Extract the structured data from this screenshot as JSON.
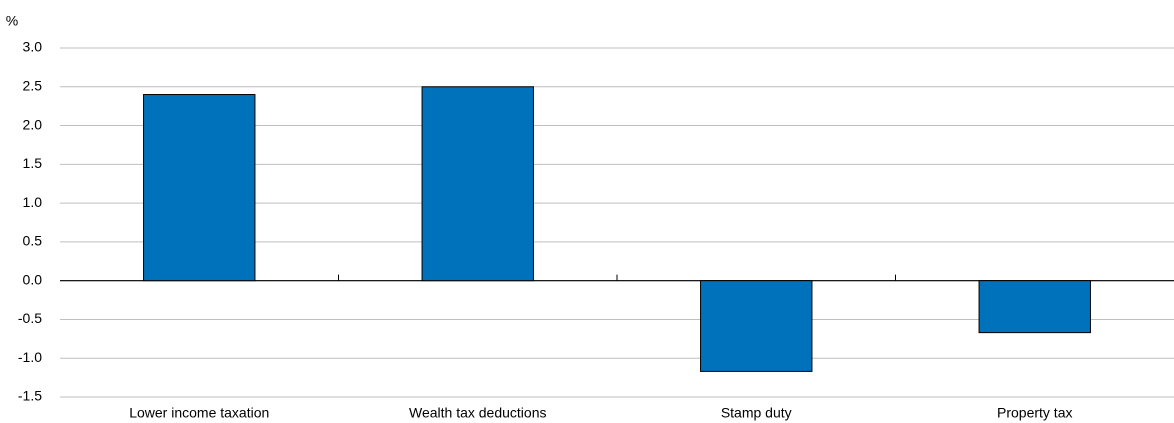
{
  "chart_data": {
    "type": "bar",
    "y_unit": "%",
    "categories": [
      "Lower income taxation",
      "Wealth tax deductions",
      "Stamp duty",
      "Property tax"
    ],
    "values": [
      2.4,
      2.5,
      -1.17,
      -0.67
    ],
    "color": "#0072bc",
    "ylim": [
      -1.5,
      3.0
    ],
    "yticks": [
      {
        "value": -1.5,
        "label": "-1.5"
      },
      {
        "value": -1,
        "label": "-1.0"
      },
      -0.5,
      {
        "value": 0,
        "label": "0.0"
      },
      0.5,
      {
        "value": 1,
        "label": "1.0"
      },
      1.5,
      {
        "value": 2,
        "label": "2.0"
      },
      2.5,
      {
        "value": 3,
        "label": "3.0"
      }
    ],
    "grid": true
  }
}
